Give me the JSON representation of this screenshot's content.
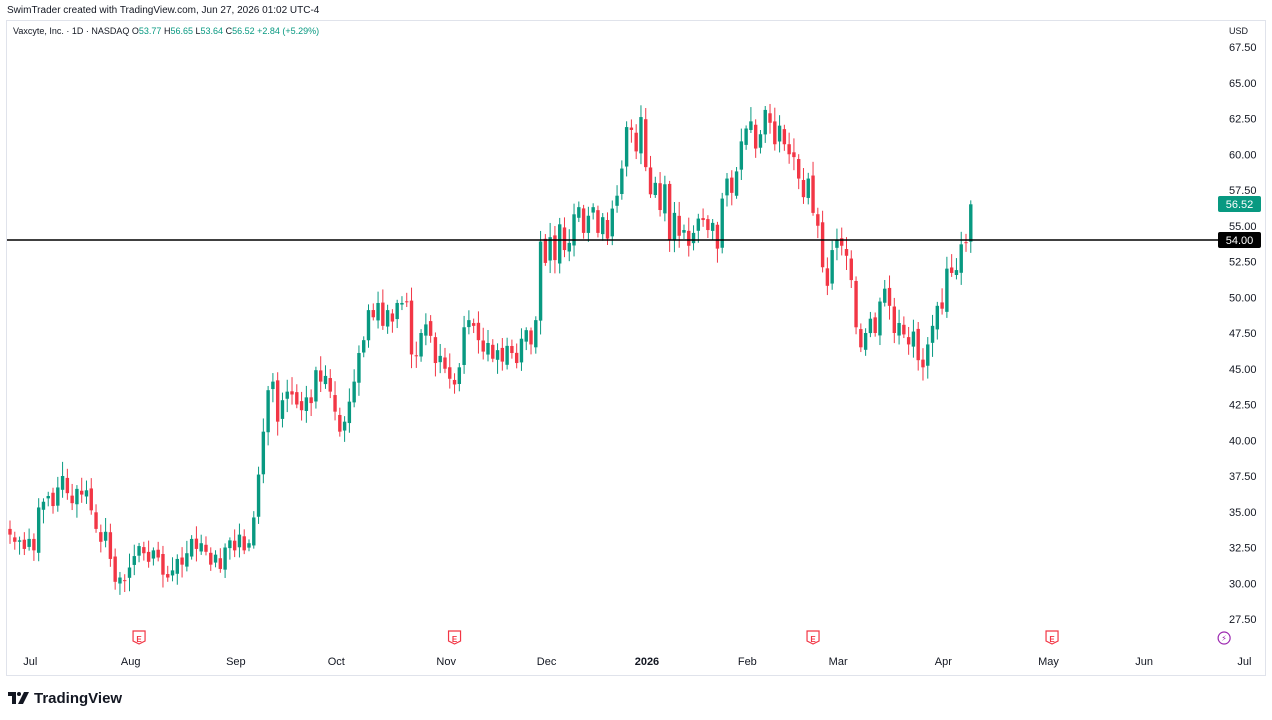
{
  "header": {
    "attribution": "SwimTrader created with TradingView.com, Jun 27, 2026 01:02 UTC-4"
  },
  "legend": {
    "symbol": "Vaxcyte, Inc. · 1D · NASDAQ",
    "o_label": "O",
    "o": "53.77",
    "h_label": "H",
    "h": "56.65",
    "l_label": "L",
    "l": "53.64",
    "c_label": "C",
    "c": "56.52",
    "change": "+2.84 (+5.29%)"
  },
  "currency": "USD",
  "footer": {
    "brand": "TradingView"
  },
  "colors": {
    "up": "#089981",
    "down": "#f23645",
    "level_line": "#000000"
  },
  "chart_data": {
    "type": "candlestick",
    "symbol": "Vaxcyte, Inc.",
    "interval": "1D",
    "exchange": "NASDAQ",
    "ylim": [
      26,
      68.5
    ],
    "y_ticks": [
      "67.50",
      "65.00",
      "62.50",
      "60.00",
      "57.50",
      "55.00",
      "52.50",
      "50.00",
      "47.50",
      "45.00",
      "42.50",
      "40.00",
      "37.50",
      "35.00",
      "32.50",
      "30.00",
      "27.50"
    ],
    "x_ticks": [
      {
        "label": "Jul",
        "bar": 3
      },
      {
        "label": "Aug",
        "bar": 24
      },
      {
        "label": "Sep",
        "bar": 46
      },
      {
        "label": "Oct",
        "bar": 67
      },
      {
        "label": "Nov",
        "bar": 90
      },
      {
        "label": "Dec",
        "bar": 111
      },
      {
        "label": "2026",
        "bar": 132
      },
      {
        "label": "Feb",
        "bar": 153
      },
      {
        "label": "Mar",
        "bar": 172
      },
      {
        "label": "Apr",
        "bar": 194
      },
      {
        "label": "May",
        "bar": 216
      },
      {
        "label": "Jun",
        "bar": 236
      },
      {
        "label": "Jul",
        "bar": 257
      }
    ],
    "horizontal_line": {
      "value": 54.0,
      "label": "54.00"
    },
    "last_price": {
      "value": 56.52,
      "label": "56.52"
    },
    "events": [
      {
        "type": "earnings",
        "symbol": "E",
        "bar": 27
      },
      {
        "type": "earnings",
        "symbol": "E",
        "bar": 93
      },
      {
        "type": "earnings",
        "symbol": "E",
        "bar": 168
      },
      {
        "type": "earnings",
        "symbol": "E",
        "bar": 218
      },
      {
        "type": "dividend-split",
        "symbol": "⚡",
        "bar": 254
      }
    ],
    "closes": [
      33.4,
      32.9,
      33.0,
      32.4,
      33.1,
      32.3,
      35.3,
      35.7,
      36.1,
      35.4,
      36.7,
      37.5,
      36.3,
      35.6,
      36.6,
      36.2,
      36.5,
      35.1,
      33.8,
      32.9,
      33.6,
      31.7,
      30.1,
      30.4,
      30.2,
      31.1,
      31.9,
      32.6,
      32.1,
      31.5,
      32.3,
      31.8,
      30.6,
      30.4,
      30.9,
      31.7,
      31.3,
      32.1,
      33.1,
      32.4,
      32.8,
      32.2,
      31.3,
      32.0,
      31.0,
      32.5,
      33.0,
      32.3,
      33.4,
      32.3,
      32.8,
      34.6,
      37.6,
      40.6,
      43.5,
      44.1,
      41.3,
      42.8,
      43.4,
      43.2,
      42.5,
      42.1,
      43.0,
      42.6,
      44.9,
      44.1,
      44.5,
      43.4,
      42.0,
      40.6,
      41.3,
      42.7,
      44.1,
      46.1,
      47.0,
      49.1,
      48.6,
      49.6,
      48.0,
      49.1,
      48.3,
      49.6,
      49.6,
      49.7,
      46.0,
      45.9,
      47.5,
      48.1,
      47.3,
      45.4,
      45.9,
      45.0,
      44.3,
      43.9,
      45.1,
      47.9,
      48.4,
      48.0,
      47.0,
      46.2,
      46.8,
      45.7,
      46.3,
      45.5,
      46.6,
      46.1,
      45.4,
      47.1,
      47.7,
      46.7,
      48.4,
      53.9,
      52.4,
      54.2,
      52.6,
      55.1,
      53.3,
      53.8,
      55.8,
      56.3,
      54.5,
      55.7,
      56.3,
      54.5,
      55.6,
      54.1,
      56.2,
      57.1,
      59.0,
      61.9,
      61.7,
      60.2,
      62.6,
      59.1,
      57.2,
      58.0,
      56.1,
      57.9,
      54.0,
      55.9,
      54.3,
      54.7,
      53.6,
      54.5,
      55.5,
      55.4,
      54.7,
      55.2,
      53.4,
      56.9,
      58.3,
      57.3,
      58.8,
      60.9,
      61.8,
      62.3,
      60.4,
      61.4,
      63.1,
      62.2,
      60.7,
      62.0,
      60.7,
      60.0,
      59.8,
      58.3,
      57.0,
      58.3,
      55.9,
      55.0,
      52.1,
      50.8,
      53.3,
      54.0,
      53.6,
      52.9,
      51.2,
      47.9,
      46.5,
      47.5,
      48.5,
      47.5,
      49.7,
      50.6,
      49.4,
      47.5,
      48.2,
      47.4,
      46.7,
      47.6,
      45.6,
      45.1,
      46.7,
      48.0,
      49.4,
      49.2,
      52.0,
      51.7,
      51.9,
      53.7,
      53.8,
      56.5
    ]
  }
}
